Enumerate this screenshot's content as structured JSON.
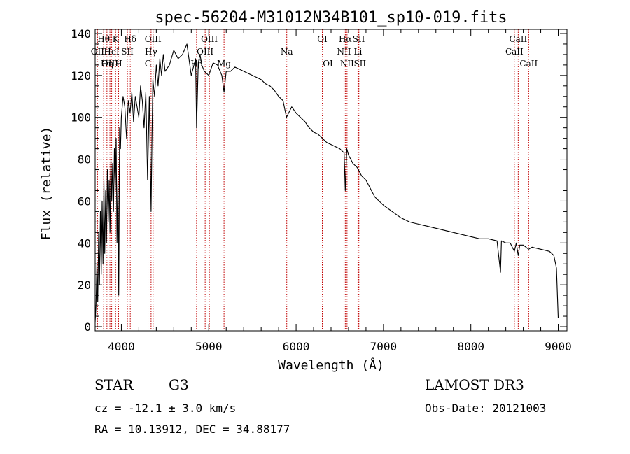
{
  "chart_data": {
    "type": "line",
    "title": "spec-56204-M31012N34B101_sp10-019.fits",
    "xlabel": "Wavelength (Å)",
    "ylabel": "Flux (relative)",
    "xlim": [
      3700,
      9100
    ],
    "ylim": [
      -2,
      142
    ],
    "xticks": [
      4000,
      5000,
      6000,
      7000,
      8000,
      9000
    ],
    "xtick_labels": [
      "4000",
      "5000",
      "6000",
      "7000",
      "8000",
      "9000"
    ],
    "yticks": [
      0,
      20,
      40,
      60,
      80,
      100,
      120,
      140
    ],
    "ytick_labels": [
      "0",
      "20",
      "40",
      "60",
      "80",
      "100",
      "120",
      "140"
    ],
    "series": [
      {
        "name": "flux",
        "x": [
          3700,
          3710,
          3720,
          3730,
          3740,
          3750,
          3760,
          3770,
          3780,
          3790,
          3800,
          3810,
          3820,
          3830,
          3840,
          3850,
          3860,
          3870,
          3880,
          3890,
          3900,
          3910,
          3920,
          3930,
          3940,
          3950,
          3960,
          3970,
          3980,
          3990,
          4000,
          4020,
          4040,
          4060,
          4080,
          4100,
          4120,
          4140,
          4160,
          4180,
          4200,
          4220,
          4240,
          4260,
          4280,
          4300,
          4320,
          4340,
          4350,
          4360,
          4380,
          4400,
          4420,
          4440,
          4460,
          4480,
          4500,
          4550,
          4600,
          4650,
          4700,
          4750,
          4800,
          4850,
          4861,
          4880,
          4900,
          4920,
          4950,
          5000,
          5050,
          5100,
          5150,
          5175,
          5200,
          5250,
          5300,
          5350,
          5400,
          5450,
          5500,
          5550,
          5600,
          5650,
          5700,
          5750,
          5800,
          5850,
          5890,
          5950,
          6000,
          6050,
          6100,
          6150,
          6200,
          6250,
          6300,
          6350,
          6400,
          6450,
          6500,
          6550,
          6563,
          6580,
          6600,
          6650,
          6700,
          6750,
          6800,
          6850,
          6900,
          6950,
          7000,
          7100,
          7200,
          7300,
          7400,
          7500,
          7600,
          7700,
          7800,
          7900,
          8000,
          8100,
          8200,
          8300,
          8340,
          8350,
          8400,
          8450,
          8498,
          8520,
          8542,
          8560,
          8600,
          8662,
          8700,
          8800,
          8900,
          8950,
          8980,
          9000
        ],
        "y": [
          2,
          10,
          30,
          12,
          45,
          20,
          55,
          25,
          60,
          30,
          70,
          35,
          65,
          40,
          75,
          50,
          70,
          45,
          80,
          60,
          78,
          55,
          85,
          65,
          90,
          40,
          70,
          15,
          95,
          85,
          100,
          110,
          105,
          90,
          108,
          102,
          112,
          98,
          110,
          105,
          100,
          115,
          108,
          95,
          112,
          70,
          110,
          55,
          88,
          118,
          110,
          125,
          115,
          128,
          120,
          130,
          122,
          125,
          132,
          128,
          130,
          135,
          120,
          128,
          95,
          126,
          130,
          125,
          122,
          120,
          126,
          125,
          120,
          112,
          122,
          122,
          124,
          123,
          122,
          121,
          120,
          119,
          118,
          116,
          115,
          113,
          110,
          108,
          100,
          105,
          102,
          100,
          98,
          95,
          93,
          92,
          90,
          88,
          87,
          86,
          85,
          83,
          65,
          85,
          82,
          78,
          76,
          72,
          70,
          66,
          62,
          60,
          58,
          55,
          52,
          50,
          49,
          48,
          47,
          46,
          45,
          44,
          43,
          42,
          42,
          41,
          26,
          41,
          40,
          40,
          36,
          40,
          34,
          39,
          39,
          37,
          38,
          37,
          36,
          34,
          28,
          4
        ]
      }
    ],
    "line_labels": [
      {
        "label": "Hθ",
        "wavelength": 3797,
        "row": 0
      },
      {
        "label": "OII",
        "wavelength": 3727,
        "row": 1
      },
      {
        "label": "OIII",
        "wavelength": 3869,
        "row": 2
      },
      {
        "label": "HeI",
        "wavelength": 3889,
        "row": 1
      },
      {
        "label": "Hη",
        "wavelength": 3835,
        "row": 2
      },
      {
        "label": "K",
        "wavelength": 3934,
        "row": 0
      },
      {
        "label": "H",
        "wavelength": 3968,
        "row": 2
      },
      {
        "label": "SII",
        "wavelength": 4069,
        "row": 1
      },
      {
        "label": "Hδ",
        "wavelength": 4102,
        "row": 0
      },
      {
        "label": "OIII",
        "wavelength": 4363,
        "row": 0
      },
      {
        "label": "Hγ",
        "wavelength": 4340,
        "row": 1
      },
      {
        "label": "G",
        "wavelength": 4305,
        "row": 2
      },
      {
        "label": "OIII",
        "wavelength": 5007,
        "row": 0
      },
      {
        "label": "OIII",
        "wavelength": 4959,
        "row": 1
      },
      {
        "label": "Hβ",
        "wavelength": 4861,
        "row": 2
      },
      {
        "label": "Mg",
        "wavelength": 5175,
        "row": 2
      },
      {
        "label": "Na",
        "wavelength": 5893,
        "row": 1
      },
      {
        "label": "OI",
        "wavelength": 6300,
        "row": 0
      },
      {
        "label": "OI",
        "wavelength": 6364,
        "row": 2
      },
      {
        "label": "Hα",
        "wavelength": 6563,
        "row": 0
      },
      {
        "label": "NII",
        "wavelength": 6548,
        "row": 1
      },
      {
        "label": "NII",
        "wavelength": 6583,
        "row": 2
      },
      {
        "label": "SII",
        "wavelength": 6717,
        "row": 0
      },
      {
        "label": "Li",
        "wavelength": 6708,
        "row": 1
      },
      {
        "label": "SII",
        "wavelength": 6731,
        "row": 2
      },
      {
        "label": "CaII",
        "wavelength": 8542,
        "row": 0
      },
      {
        "label": "CaII",
        "wavelength": 8498,
        "row": 1
      },
      {
        "label": "CaII",
        "wavelength": 8662,
        "row": 2
      }
    ],
    "line_color": "#c00000",
    "spectrum_color": "#000000"
  },
  "info": {
    "object_type": "STAR",
    "subclass": "G3",
    "survey": "LAMOST DR3",
    "cz": "cz = -12.1 ± 3.0 km/s",
    "obs_date": "Obs-Date: 20121003",
    "radec": "RA =  10.13912, DEC =  34.88177"
  }
}
